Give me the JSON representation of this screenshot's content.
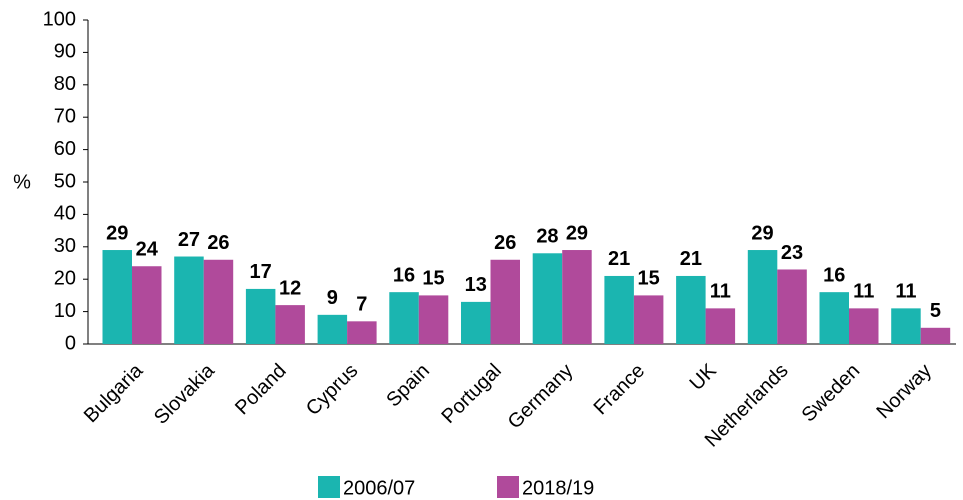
{
  "chart_data": {
    "type": "bar",
    "y_label": "%",
    "categories": [
      "Bulgaria",
      "Slovakia",
      "Poland",
      "Cyprus",
      "Spain",
      "Portugal",
      "Germany",
      "France",
      "UK",
      "Netherlands",
      "Sweden",
      "Norway"
    ],
    "series": [
      {
        "name": "2006/07",
        "color": "#1bb5b0",
        "values": [
          29,
          27,
          17,
          9,
          16,
          13,
          28,
          21,
          21,
          29,
          16,
          11
        ]
      },
      {
        "name": "2018/19",
        "color": "#b04a9b",
        "values": [
          24,
          26,
          12,
          7,
          15,
          26,
          29,
          15,
          11,
          23,
          11,
          5
        ]
      }
    ],
    "ylim": [
      0,
      100
    ],
    "yticks": [
      0,
      10,
      20,
      30,
      40,
      50,
      60,
      70,
      80,
      90,
      100
    ],
    "legend": "bottom"
  }
}
